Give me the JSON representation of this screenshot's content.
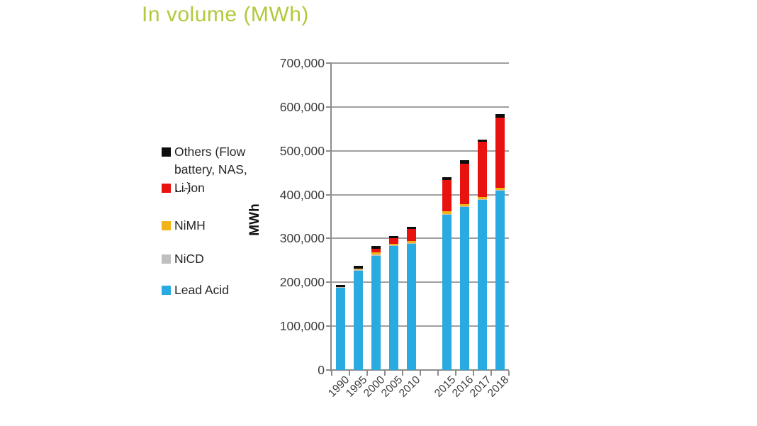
{
  "page": {
    "title": "In volume (MWh)"
  },
  "colors": {
    "title": "#b2c93a",
    "gridline": "#a0a0a0",
    "axis": "#8c8c8c",
    "tick_text": "#3d3d3d",
    "lead_acid": "#29abe2",
    "nicd": "#bfbfbf",
    "nimh": "#f0b418",
    "li_ion": "#e8120e",
    "others": "#0d0d0d"
  },
  "legend": {
    "items": [
      {
        "label": "Others (Flow battery, NAS, …)",
        "color": "#0d0d0d"
      },
      {
        "label": "Li-ion",
        "color": "#e8120e"
      },
      {
        "label": "NiMH",
        "color": "#f0b418"
      },
      {
        "label": "NiCD",
        "color": "#bfbfbf"
      },
      {
        "label": "Lead Acid",
        "color": "#29abe2"
      }
    ]
  },
  "chart_data": {
    "type": "bar",
    "stacked": true,
    "title": "In volume (MWh)",
    "xlabel": "",
    "ylabel": "MWh",
    "categories": [
      "1990",
      "1995",
      "2000",
      "2005",
      "2010",
      "2015",
      "2016",
      "2017",
      "2018"
    ],
    "gap_after_category": "2010",
    "series": [
      {
        "name": "Lead Acid",
        "color": "#29abe2",
        "values": [
          187000,
          227000,
          261000,
          283000,
          288000,
          355000,
          373000,
          388000,
          410000
        ]
      },
      {
        "name": "NiCD",
        "color": "#bfbfbf",
        "values": [
          2000,
          2000,
          2000,
          1000,
          1000,
          1000,
          1000,
          1000,
          1000
        ]
      },
      {
        "name": "NiMH",
        "color": "#f0b418",
        "values": [
          0,
          2000,
          5000,
          4000,
          5000,
          6000,
          5000,
          5000,
          5000
        ]
      },
      {
        "name": "Li-ion",
        "color": "#e8120e",
        "values": [
          0,
          0,
          8000,
          12000,
          28000,
          72000,
          92000,
          127000,
          159000
        ]
      },
      {
        "name": "Others (Flow battery, NAS, …)",
        "color": "#0d0d0d",
        "values": [
          5000,
          6000,
          7000,
          5000,
          5000,
          5000,
          7000,
          5000,
          8000
        ]
      }
    ],
    "totals": [
      194000,
      237000,
      283000,
      305000,
      327000,
      439000,
      478000,
      526000,
      583000
    ],
    "ylim": [
      0,
      700000
    ],
    "ytick_step": 100000,
    "ytick_labels": [
      "0",
      "100,000",
      "200,000",
      "300,000",
      "400,000",
      "500,000",
      "600,000",
      "700,000"
    ],
    "grid": true,
    "legend_position": "left"
  }
}
